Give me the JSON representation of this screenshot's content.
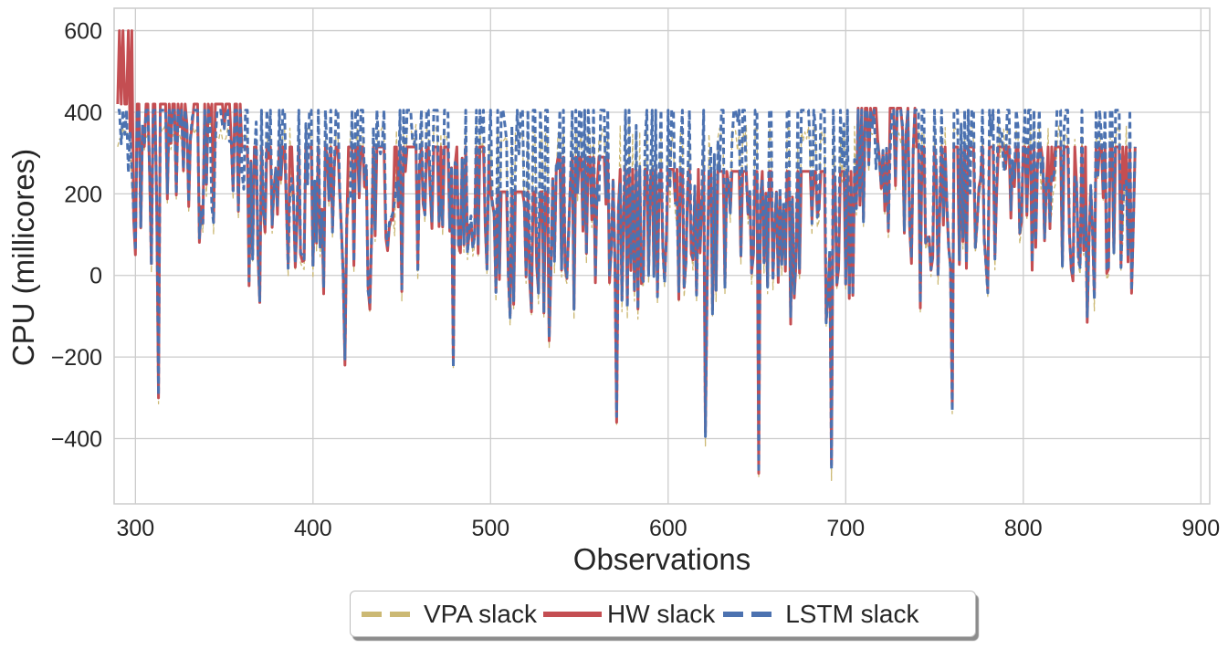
{
  "chart_data": {
    "type": "line",
    "title": "",
    "xlabel": "Observations",
    "ylabel": "CPU (millicores)",
    "xlim": [
      288,
      905
    ],
    "ylim": [
      -560,
      655
    ],
    "xticks": [
      300,
      400,
      500,
      600,
      700,
      800,
      900
    ],
    "yticks": [
      600,
      400,
      200,
      0,
      -200,
      -400
    ],
    "xtick_labels": [
      "300",
      "400",
      "500",
      "600",
      "700",
      "800",
      "900"
    ],
    "ytick_labels": [
      "600",
      "400",
      "200",
      "0",
      "−200",
      "−400"
    ],
    "grid": true,
    "legend_position": "bottom-center",
    "series": [
      {
        "name": "VPA slack",
        "color": "#ccb974",
        "dash": "dashed",
        "key": "vpa"
      },
      {
        "name": "HW slack",
        "color": "#c44e52",
        "dash": "solid",
        "key": "hw"
      },
      {
        "name": "LSTM slack",
        "color": "#4c72b0",
        "dash": "dashed",
        "key": "lstm"
      }
    ],
    "x_start": 290,
    "x_end": 863,
    "hw_levels": [
      {
        "from": 290,
        "to": 300,
        "value": 420
      },
      {
        "from": 300,
        "to": 360,
        "value": 420
      },
      {
        "from": 360,
        "to": 455,
        "value": 315
      },
      {
        "from": 455,
        "to": 500,
        "value": 315
      },
      {
        "from": 500,
        "to": 535,
        "value": 205
      },
      {
        "from": 535,
        "to": 570,
        "value": 290
      },
      {
        "from": 570,
        "to": 620,
        "value": 260
      },
      {
        "from": 620,
        "to": 706,
        "value": 255
      },
      {
        "from": 706,
        "to": 740,
        "value": 410
      },
      {
        "from": 740,
        "to": 790,
        "value": 315
      },
      {
        "from": 790,
        "to": 863,
        "value": 315
      }
    ],
    "hw_spikes_up": [
      {
        "x": 291,
        "value": 600
      },
      {
        "x": 293,
        "value": 600
      },
      {
        "x": 296,
        "value": 600
      },
      {
        "x": 298,
        "value": 600
      }
    ],
    "notable_minima": [
      {
        "x": 313,
        "value": -300
      },
      {
        "x": 418,
        "value": -220
      },
      {
        "x": 479,
        "value": -215
      },
      {
        "x": 571,
        "value": -360
      },
      {
        "x": 621,
        "value": -385
      },
      {
        "x": 651,
        "value": -485
      },
      {
        "x": 692,
        "value": -465
      },
      {
        "x": 760,
        "value": -325
      },
      {
        "x": 836,
        "value": -115
      }
    ],
    "lstm_upper": 405,
    "vpa_upper": 370
  },
  "legend": {
    "items": [
      {
        "label": "VPA slack",
        "color": "#ccb974"
      },
      {
        "label": "HW slack",
        "color": "#c44e52"
      },
      {
        "label": "LSTM slack",
        "color": "#4c72b0"
      }
    ]
  }
}
